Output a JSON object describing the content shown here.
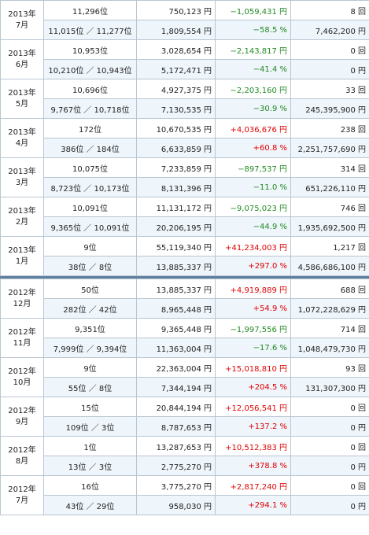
{
  "months": [
    {
      "month": "2013年\n7月",
      "r1": {
        "rank": "11,296位",
        "amount": "750,123 円",
        "diff": "−1,059,431 円",
        "sign": "neg",
        "count": "8 回"
      },
      "r2": {
        "rank": "11,015位 ／ 11,277位",
        "amount": "1,809,554 円",
        "diff": "−58.5 %",
        "sign": "neg",
        "count": "7,462,200 円"
      }
    },
    {
      "month": "2013年\n6月",
      "r1": {
        "rank": "10,953位",
        "amount": "3,028,654 円",
        "diff": "−2,143,817 円",
        "sign": "neg",
        "count": "0 回"
      },
      "r2": {
        "rank": "10,210位 ／ 10,943位",
        "amount": "5,172,471 円",
        "diff": "−41.4 %",
        "sign": "neg",
        "count": "0 円"
      }
    },
    {
      "month": "2013年\n5月",
      "r1": {
        "rank": "10,696位",
        "amount": "4,927,375 円",
        "diff": "−2,203,160 円",
        "sign": "neg",
        "count": "33 回"
      },
      "r2": {
        "rank": "9,767位 ／ 10,718位",
        "amount": "7,130,535 円",
        "diff": "−30.9 %",
        "sign": "neg",
        "count": "245,395,900 円"
      }
    },
    {
      "month": "2013年\n4月",
      "r1": {
        "rank": "172位",
        "amount": "10,670,535 円",
        "diff": "+4,036,676 円",
        "sign": "pos",
        "count": "238 回"
      },
      "r2": {
        "rank": "386位 ／ 184位",
        "amount": "6,633,859 円",
        "diff": "+60.8 %",
        "sign": "pos",
        "count": "2,251,757,690 円"
      }
    },
    {
      "month": "2013年\n3月",
      "r1": {
        "rank": "10,075位",
        "amount": "7,233,859 円",
        "diff": "−897,537 円",
        "sign": "neg",
        "count": "314 回"
      },
      "r2": {
        "rank": "8,723位 ／ 10,173位",
        "amount": "8,131,396 円",
        "diff": "−11.0 %",
        "sign": "neg",
        "count": "651,226,110 円"
      }
    },
    {
      "month": "2013年\n2月",
      "r1": {
        "rank": "10,091位",
        "amount": "11,131,172 円",
        "diff": "−9,075,023 円",
        "sign": "neg",
        "count": "746 回"
      },
      "r2": {
        "rank": "9,365位 ／ 10,091位",
        "amount": "20,206,195 円",
        "diff": "−44.9 %",
        "sign": "neg",
        "count": "1,935,692,500 円"
      }
    },
    {
      "month": "2013年\n1月",
      "r1": {
        "rank": "9位",
        "amount": "55,119,340 円",
        "diff": "+41,234,003 円",
        "sign": "pos",
        "count": "1,217 回"
      },
      "r2": {
        "rank": "38位 ／ 8位",
        "amount": "13,885,337 円",
        "diff": "+297.0 %",
        "sign": "pos",
        "count": "4,586,686,100 円"
      }
    },
    {
      "month": "2012年\n12月",
      "r1": {
        "rank": "50位",
        "amount": "13,885,337 円",
        "diff": "+4,919,889 円",
        "sign": "pos",
        "count": "688 回"
      },
      "r2": {
        "rank": "282位 ／ 42位",
        "amount": "8,965,448 円",
        "diff": "+54.9 %",
        "sign": "pos",
        "count": "1,072,228,629 円"
      }
    },
    {
      "month": "2012年\n11月",
      "r1": {
        "rank": "9,351位",
        "amount": "9,365,448 円",
        "diff": "−1,997,556 円",
        "sign": "neg",
        "count": "714 回"
      },
      "r2": {
        "rank": "7,999位 ／ 9,394位",
        "amount": "11,363,004 円",
        "diff": "−17.6 %",
        "sign": "neg",
        "count": "1,048,479,730 円"
      }
    },
    {
      "month": "2012年\n10月",
      "r1": {
        "rank": "9位",
        "amount": "22,363,004 円",
        "diff": "+15,018,810 円",
        "sign": "pos",
        "count": "93 回"
      },
      "r2": {
        "rank": "55位 ／ 8位",
        "amount": "7,344,194 円",
        "diff": "+204.5 %",
        "sign": "pos",
        "count": "131,307,300 円"
      }
    },
    {
      "month": "2012年\n9月",
      "r1": {
        "rank": "15位",
        "amount": "20,844,194 円",
        "diff": "+12,056,541 円",
        "sign": "pos",
        "count": "0 回"
      },
      "r2": {
        "rank": "109位 ／ 3位",
        "amount": "8,787,653 円",
        "diff": "+137.2 %",
        "sign": "pos",
        "count": "0 円"
      }
    },
    {
      "month": "2012年\n8月",
      "r1": {
        "rank": "1位",
        "amount": "13,287,653 円",
        "diff": "+10,512,383 円",
        "sign": "pos",
        "count": "0 回"
      },
      "r2": {
        "rank": "13位 ／ 3位",
        "amount": "2,775,270 円",
        "diff": "+378.8 %",
        "sign": "pos",
        "count": "0 円"
      }
    },
    {
      "month": "2012年\n7月",
      "r1": {
        "rank": "16位",
        "amount": "3,775,270 円",
        "diff": "+2,817,240 円",
        "sign": "pos",
        "count": "0 回"
      },
      "r2": {
        "rank": "43位 ／ 29位",
        "amount": "958,030 円",
        "diff": "+294.1 %",
        "sign": "pos",
        "count": "0 円"
      }
    }
  ]
}
